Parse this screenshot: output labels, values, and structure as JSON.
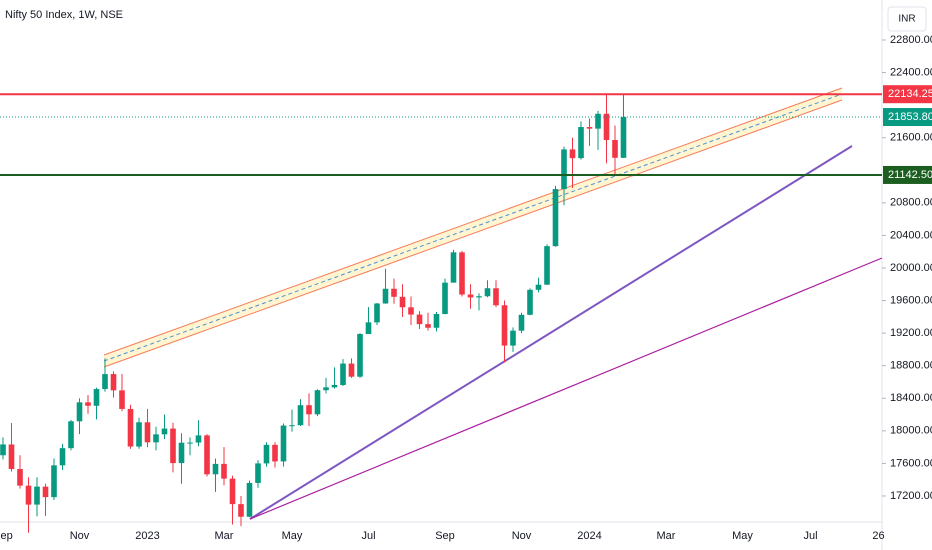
{
  "chart_data": {
    "type": "candlestick",
    "title": "Nifty 50 Index, 1W, NSE",
    "currency": "INR",
    "up_color": "#089981",
    "down_color": "#f23645",
    "categories": [
      "Sep",
      null,
      null,
      null,
      null,
      null,
      null,
      null,
      null,
      "Nov",
      null,
      null,
      null,
      null,
      null,
      null,
      null,
      "2023",
      null,
      null,
      null,
      null,
      null,
      null,
      null,
      null,
      "Mar",
      null,
      null,
      null,
      null,
      null,
      null,
      null,
      "May",
      null,
      null,
      null,
      null,
      null,
      null,
      null,
      null,
      "Jul",
      null,
      null,
      null,
      null,
      null,
      null,
      null,
      null,
      "Sep",
      null,
      null,
      null,
      null,
      null,
      null,
      null,
      null,
      "Nov",
      null,
      null,
      null,
      null,
      null,
      null,
      null,
      "2024",
      null,
      null,
      null,
      null,
      null,
      null,
      null,
      null,
      "Mar",
      null,
      null,
      null,
      null,
      null,
      null,
      null,
      null,
      "May",
      null,
      null,
      null,
      null,
      null,
      null,
      null,
      "Jul",
      null,
      null,
      null,
      null,
      null,
      null,
      null,
      "26"
    ],
    "open": [
      17700,
      17833,
      17531,
      17327,
      17094,
      17315,
      17186,
      17576,
      17787,
      18117,
      18350,
      18308,
      18513,
      18697,
      18497,
      18269,
      17807,
      18105,
      17859,
      17957,
      18028,
      17604,
      17854,
      17856,
      17944,
      17466,
      17594,
      17413,
      17100,
      16945,
      17360,
      17600,
      17828,
      17624,
      18065,
      18069,
      18315,
      18203,
      18499,
      18534,
      18563,
      18826,
      18665,
      19189,
      19332,
      19564,
      19745,
      19646,
      19517,
      19428,
      19310,
      19266,
      19435,
      19820,
      20192,
      19674,
      19638,
      19653,
      19751,
      19542,
      19047,
      19230,
      19425,
      19732,
      19795,
      20268,
      20969,
      21456,
      21349,
      21731,
      21711,
      21894,
      21572,
      21353,
      null,
      null,
      null,
      null,
      null,
      null,
      null,
      null,
      null,
      null,
      null,
      null,
      null,
      null,
      null,
      null,
      null,
      null,
      null,
      null,
      null,
      null,
      null,
      null,
      null,
      null,
      null,
      null,
      null,
      null
    ],
    "high": [
      17920,
      18096,
      17700,
      17430,
      17430,
      17350,
      17660,
      17840,
      18135,
      18400,
      18440,
      18530,
      18890,
      18730,
      18700,
      18320,
      18160,
      18270,
      18050,
      18200,
      18100,
      17970,
      17920,
      18130,
      17960,
      17660,
      17800,
      17450,
      17200,
      17390,
      17640,
      17860,
      17860,
      18090,
      18260,
      18390,
      18460,
      18510,
      18650,
      18780,
      18880,
      18890,
      19200,
      19520,
      19570,
      19990,
      19870,
      19800,
      19650,
      19470,
      19450,
      19460,
      19870,
      20222,
      20210,
      19800,
      19690,
      19850,
      19850,
      19600,
      19270,
      19450,
      19750,
      19880,
      20290,
      21010,
      21490,
      21600,
      21800,
      21835,
      21930,
      22124,
      21750,
      22126,
      null,
      null,
      null,
      null,
      null,
      null,
      null,
      null,
      null,
      null,
      null,
      null,
      null,
      null,
      null,
      null,
      null,
      null,
      null,
      null,
      null,
      null,
      null,
      null,
      null,
      null,
      null,
      null,
      null,
      null
    ],
    "low": [
      17650,
      17500,
      17290,
      16748,
      16950,
      16956,
      17150,
      17520,
      17760,
      17960,
      18210,
      18140,
      18480,
      18410,
      18240,
      17780,
      17780,
      17800,
      17760,
      17900,
      17490,
      17350,
      17700,
      17810,
      17440,
      17250,
      17330,
      16850,
      16830,
      16940,
      17300,
      17560,
      17550,
      17560,
      17990,
      18060,
      18060,
      18180,
      18460,
      18520,
      18550,
      18650,
      18650,
      19190,
      19300,
      19560,
      19560,
      19400,
      19300,
      19250,
      19230,
      19220,
      19430,
      19820,
      19650,
      19500,
      19480,
      19640,
      19520,
      18840,
      18970,
      19200,
      19420,
      19700,
      19790,
      20260,
      20770,
      20980,
      21330,
      21500,
      21450,
      21285,
      21137,
      21350,
      null,
      null,
      null,
      null,
      null,
      null,
      null,
      null,
      null,
      null,
      null,
      null,
      null,
      null,
      null,
      null,
      null,
      null,
      null,
      null,
      null,
      null,
      null,
      null,
      null,
      null,
      null,
      null,
      null,
      null
    ],
    "close": [
      17833,
      17531,
      17327,
      17094,
      17315,
      17186,
      17576,
      17787,
      18117,
      18350,
      18308,
      18513,
      18697,
      18497,
      18269,
      17807,
      18105,
      17859,
      17957,
      18028,
      17604,
      17854,
      17856,
      17944,
      17466,
      17594,
      17413,
      17100,
      16945,
      17360,
      17600,
      17828,
      17624,
      18065,
      18069,
      18315,
      18203,
      18499,
      18534,
      18563,
      18826,
      18665,
      19189,
      19332,
      19564,
      19745,
      19646,
      19517,
      19428,
      19310,
      19266,
      19435,
      19820,
      20192,
      19674,
      19638,
      19653,
      19751,
      19542,
      19047,
      19230,
      19425,
      19732,
      19795,
      20268,
      20969,
      21456,
      21349,
      21731,
      21711,
      21894,
      21572,
      21353,
      21854,
      null,
      null,
      null,
      null,
      null,
      null,
      null,
      null,
      null,
      null,
      null,
      null,
      null,
      null,
      null,
      null,
      null,
      null,
      null,
      null,
      null,
      null,
      null,
      null,
      null,
      null,
      null,
      null,
      null,
      null
    ],
    "ylim": [
      16905,
      23291
    ],
    "yticks": [
      {
        "value": 22800,
        "label": "22800.00"
      },
      {
        "value": 22400,
        "label": "22400.00"
      },
      {
        "value": 21600,
        "label": "21600.00"
      },
      {
        "value": 20800,
        "label": "20800.00"
      },
      {
        "value": 20400,
        "label": "20400.00"
      },
      {
        "value": 20000,
        "label": "20000.00"
      },
      {
        "value": 19600,
        "label": "19600.00"
      },
      {
        "value": 19200,
        "label": "19200.00"
      },
      {
        "value": 18800,
        "label": "18800.00"
      },
      {
        "value": 18400,
        "label": "18400.00"
      },
      {
        "value": 18000,
        "label": "18000.00"
      },
      {
        "value": 17600,
        "label": "17600.00"
      },
      {
        "value": 17200,
        "label": "17200.00"
      }
    ],
    "levels": [
      {
        "value": 22134.25,
        "color": "#f23645",
        "style": "solid"
      },
      {
        "value": 21853.8,
        "label": "21853.80",
        "color": "#089981",
        "style": "dotted"
      },
      {
        "value": 21142.5,
        "label": "21142.50",
        "color": "#1b5e20",
        "style": "solid"
      }
    ]
  }
}
